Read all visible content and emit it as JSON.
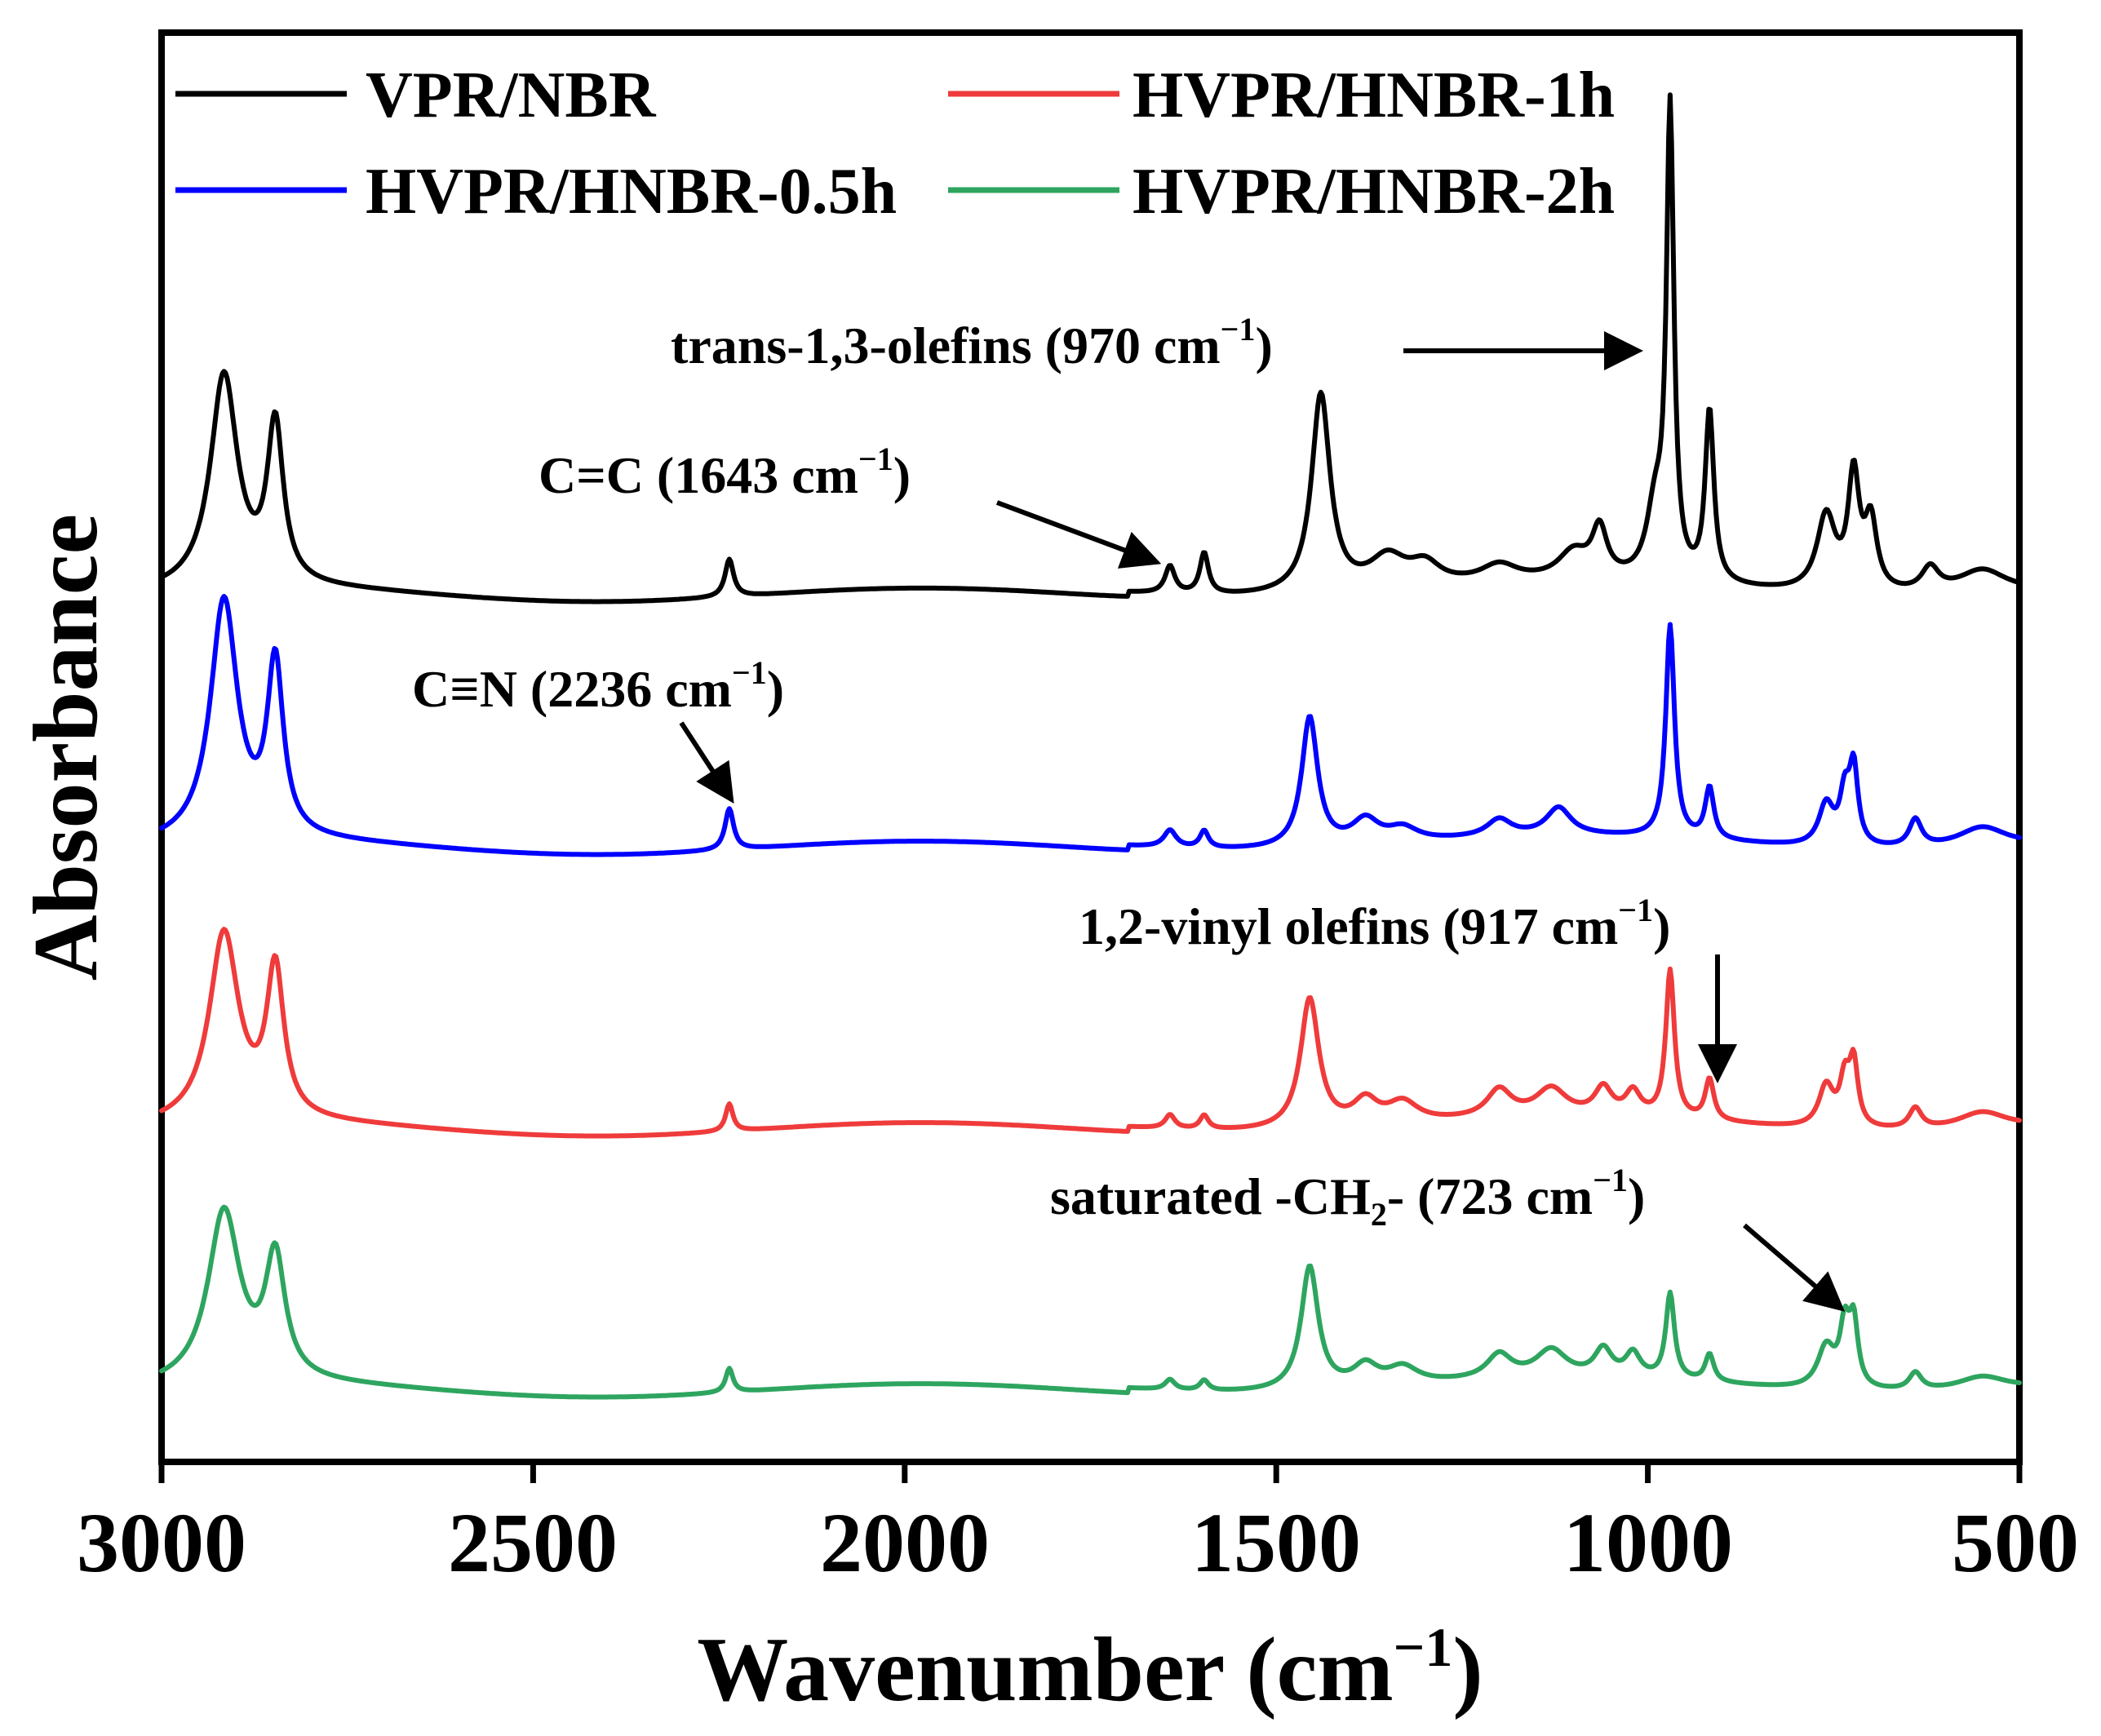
{
  "chart_data": {
    "type": "line",
    "title": "",
    "xlabel": "Wavenumber (cm−1)",
    "xlabel_main": "Wavenumber (cm",
    "xlabel_sup": "−1",
    "xlabel_close": ")",
    "ylabel": "Absorbance",
    "xlim": [
      3000,
      500
    ],
    "x_reversed": true,
    "xticks": [
      3000,
      2500,
      2000,
      1500,
      1000,
      500
    ],
    "xtick_labels": [
      "3000",
      "2500",
      "2000",
      "1500",
      "1000",
      "500"
    ],
    "y_ticks_shown": false,
    "legend_position": "top",
    "series": [
      {
        "name": "VPR/NBR",
        "color": "#000000",
        "baseline": 0.0,
        "peaks": [
          [
            2916,
            0.62,
            22
          ],
          [
            2847,
            0.46,
            13
          ],
          [
            2236,
            0.11,
            7
          ],
          [
            1643,
            0.08,
            8
          ],
          [
            1597,
            0.12,
            7
          ],
          [
            1440,
            0.58,
            15
          ],
          [
            1350,
            0.09,
            30
          ],
          [
            1300,
            0.06,
            25
          ],
          [
            1200,
            0.05,
            30
          ],
          [
            1100,
            0.08,
            25
          ],
          [
            1065,
            0.14,
            12
          ],
          [
            990,
            0.2,
            14
          ],
          [
            970,
            1.35,
            6
          ],
          [
            917,
            0.5,
            7
          ],
          [
            760,
            0.22,
            15
          ],
          [
            723,
            0.33,
            9
          ],
          [
            700,
            0.2,
            10
          ],
          [
            620,
            0.07,
            14
          ],
          [
            550,
            0.07,
            40
          ]
        ]
      },
      {
        "name": "HVPR/HNBR-0.5h",
        "color": "#0000ff",
        "baseline": 0.0,
        "peaks": [
          [
            2916,
            0.7,
            22
          ],
          [
            2847,
            0.5,
            13
          ],
          [
            2236,
            0.12,
            7
          ],
          [
            1643,
            0.05,
            10
          ],
          [
            1597,
            0.05,
            7
          ],
          [
            1455,
            0.38,
            13
          ],
          [
            1380,
            0.07,
            22
          ],
          [
            1330,
            0.04,
            25
          ],
          [
            1200,
            0.05,
            20
          ],
          [
            1120,
            0.08,
            20
          ],
          [
            970,
            0.62,
            7
          ],
          [
            917,
            0.15,
            7
          ],
          [
            760,
            0.12,
            12
          ],
          [
            735,
            0.14,
            8
          ],
          [
            723,
            0.22,
            7
          ],
          [
            640,
            0.08,
            10
          ],
          [
            550,
            0.06,
            40
          ]
        ]
      },
      {
        "name": "HVPR/HNBR-1h",
        "color": "#ef3b3b",
        "baseline": 0.0,
        "peaks": [
          [
            2916,
            0.55,
            24
          ],
          [
            2847,
            0.43,
            14
          ],
          [
            2236,
            0.08,
            6
          ],
          [
            1643,
            0.04,
            8
          ],
          [
            1597,
            0.04,
            7
          ],
          [
            1455,
            0.38,
            15
          ],
          [
            1380,
            0.07,
            20
          ],
          [
            1330,
            0.06,
            25
          ],
          [
            1200,
            0.08,
            20
          ],
          [
            1130,
            0.08,
            25
          ],
          [
            1060,
            0.08,
            14
          ],
          [
            1020,
            0.07,
            12
          ],
          [
            970,
            0.43,
            7
          ],
          [
            917,
            0.12,
            7
          ],
          [
            760,
            0.12,
            12
          ],
          [
            735,
            0.13,
            8
          ],
          [
            723,
            0.18,
            7
          ],
          [
            640,
            0.06,
            10
          ],
          [
            550,
            0.05,
            40
          ]
        ]
      },
      {
        "name": "HVPR/HNBR-2h",
        "color": "#2ea55f",
        "baseline": 0.0,
        "peaks": [
          [
            2916,
            0.5,
            26
          ],
          [
            2847,
            0.35,
            16
          ],
          [
            2236,
            0.07,
            6
          ],
          [
            1643,
            0.03,
            8
          ],
          [
            1597,
            0.03,
            7
          ],
          [
            1455,
            0.36,
            14
          ],
          [
            1380,
            0.06,
            20
          ],
          [
            1330,
            0.05,
            25
          ],
          [
            1200,
            0.07,
            20
          ],
          [
            1130,
            0.08,
            25
          ],
          [
            1060,
            0.08,
            14
          ],
          [
            1020,
            0.07,
            12
          ],
          [
            970,
            0.25,
            7
          ],
          [
            917,
            0.08,
            7
          ],
          [
            760,
            0.12,
            14
          ],
          [
            735,
            0.17,
            8
          ],
          [
            723,
            0.18,
            7
          ],
          [
            640,
            0.05,
            10
          ],
          [
            550,
            0.04,
            40
          ]
        ]
      }
    ],
    "annotations": [
      {
        "label": "trans-1,3-olefins (970 cm−1)",
        "text_main": "trans-1,3-olefins (970 cm",
        "text_sup": "−1",
        "text_close": ")",
        "x": 970,
        "series": "VPR/NBR"
      },
      {
        "label": "C=C (1643 cm−1)",
        "text_main": "C=C (1643 cm",
        "text_sup": "−1",
        "text_close": ")",
        "x": 1643,
        "series": "VPR/NBR"
      },
      {
        "label": "C≡N (2236 cm−1)",
        "text_main": "C≡N (2236 cm",
        "text_sup": "−1",
        "text_close": ")",
        "x": 2236,
        "series": "HVPR/HNBR-0.5h"
      },
      {
        "label": "1,2-vinyl olefins (917 cm−1)",
        "text_main": "1,2-vinyl olefins (917 cm",
        "text_sup": "−1",
        "text_close": ")",
        "x": 917,
        "series": "HVPR/HNBR-1h"
      },
      {
        "label": "saturated -CH2- (723 cm−1)",
        "text_main": "saturated -CH",
        "text_sub": "2",
        "text_mid": "- (723 cm",
        "text_sup": "−1",
        "text_close": ")",
        "x": 723,
        "series": "HVPR/HNBR-2h"
      }
    ]
  }
}
